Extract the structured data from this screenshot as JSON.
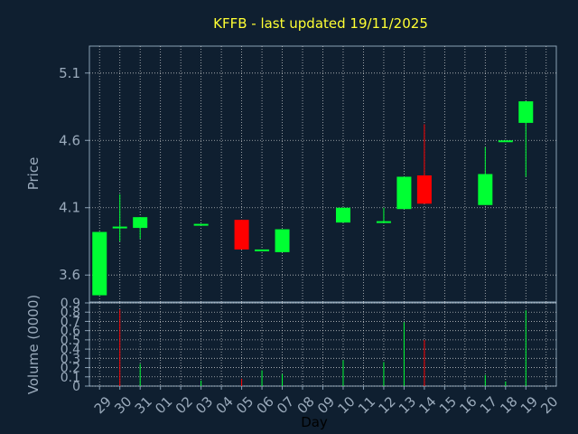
{
  "header": {
    "title": "KFFB - last updated 19/11/2025"
  },
  "colors": {
    "background": "#0f1f30",
    "up": "#00ff33",
    "down": "#ff0000",
    "grid": "#e6e6e6",
    "text": "#9aaabb",
    "title": "#ffff33"
  },
  "chart_data": [
    {
      "type": "candlestick",
      "title": "KFFB - last updated 19/11/2025",
      "ylabel": "Price",
      "ylim": [
        3.4,
        5.3
      ],
      "yticks": [
        "3.6",
        "4.1",
        "4.6",
        "5.1"
      ],
      "grid": true,
      "categories": [
        "29",
        "30",
        "31",
        "01",
        "02",
        "03",
        "04",
        "05",
        "06",
        "07",
        "08",
        "09",
        "10",
        "11",
        "12",
        "13",
        "14",
        "15",
        "16",
        "17",
        "18",
        "19",
        "20"
      ],
      "candles": [
        {
          "day": "29",
          "open": 3.45,
          "close": 3.92,
          "high": 3.92,
          "low": 3.45
        },
        {
          "day": "30",
          "open": 3.96,
          "close": 3.96,
          "high": 4.2,
          "low": 3.85
        },
        {
          "day": "31",
          "open": 3.95,
          "close": 4.03,
          "high": 4.03,
          "low": 3.87
        },
        {
          "day": "03",
          "open": 3.97,
          "close": 3.98,
          "high": 3.98,
          "low": 3.97
        },
        {
          "day": "05",
          "open": 4.01,
          "close": 3.79,
          "high": 4.01,
          "low": 3.79
        },
        {
          "day": "06",
          "open": 3.78,
          "close": 3.79,
          "high": 3.79,
          "low": 3.78
        },
        {
          "day": "07",
          "open": 3.77,
          "close": 3.94,
          "high": 3.94,
          "low": 3.77
        },
        {
          "day": "10",
          "open": 3.99,
          "close": 4.1,
          "high": 4.1,
          "low": 3.99
        },
        {
          "day": "12",
          "open": 3.99,
          "close": 4.0,
          "high": 4.1,
          "low": 3.99
        },
        {
          "day": "13",
          "open": 4.09,
          "close": 4.33,
          "high": 4.33,
          "low": 4.09
        },
        {
          "day": "14",
          "open": 4.34,
          "close": 4.13,
          "high": 4.72,
          "low": 4.13
        },
        {
          "day": "17",
          "open": 4.12,
          "close": 4.35,
          "high": 4.55,
          "low": 4.12
        },
        {
          "day": "18",
          "open": 4.59,
          "close": 4.6,
          "high": 4.6,
          "low": 4.59
        },
        {
          "day": "19",
          "open": 4.73,
          "close": 4.89,
          "high": 4.89,
          "low": 4.33
        }
      ]
    },
    {
      "type": "bar",
      "ylabel": "Volume (0000)",
      "xlabel": "Day",
      "ylim": [
        0,
        0.9
      ],
      "yticks": [
        "0",
        "0.1",
        "0.2",
        "0.3",
        "0.4",
        "0.5",
        "0.6",
        "0.7",
        "0.8",
        "0.9"
      ],
      "categories": [
        "29",
        "30",
        "31",
        "01",
        "02",
        "03",
        "04",
        "05",
        "06",
        "07",
        "08",
        "09",
        "10",
        "11",
        "12",
        "13",
        "14",
        "15",
        "16",
        "17",
        "18",
        "19",
        "20"
      ],
      "bars": [
        {
          "day": "30",
          "value": 0.83,
          "direction": "down"
        },
        {
          "day": "31",
          "value": 0.24,
          "direction": "up"
        },
        {
          "day": "03",
          "value": 0.06,
          "direction": "up"
        },
        {
          "day": "05",
          "value": 0.08,
          "direction": "down"
        },
        {
          "day": "06",
          "value": 0.17,
          "direction": "up"
        },
        {
          "day": "07",
          "value": 0.13,
          "direction": "up"
        },
        {
          "day": "10",
          "value": 0.28,
          "direction": "up"
        },
        {
          "day": "12",
          "value": 0.26,
          "direction": "up"
        },
        {
          "day": "13",
          "value": 0.69,
          "direction": "up"
        },
        {
          "day": "14",
          "value": 0.5,
          "direction": "down"
        },
        {
          "day": "17",
          "value": 0.12,
          "direction": "up"
        },
        {
          "day": "18",
          "value": 0.05,
          "direction": "up"
        },
        {
          "day": "19",
          "value": 0.82,
          "direction": "up"
        }
      ]
    }
  ]
}
